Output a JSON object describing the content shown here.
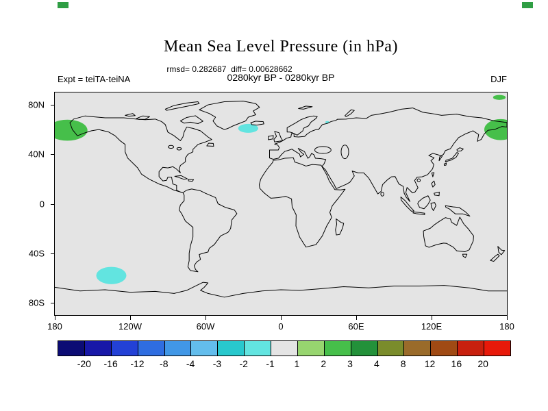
{
  "chart_data": {
    "type": "heatmap",
    "title": "Mean Sea Level Pressure (in hPa)",
    "stats_line": "rmsd= 0.282687  diff= 0.00628662",
    "period_label": "0280kyr BP - 0280kyr BP",
    "experiment_label": "Expt = teiTA-teiNA",
    "season_label": "DJF",
    "projection": "equirectangular",
    "lon_range": [
      -180,
      180
    ],
    "lat_range": [
      -90,
      90
    ],
    "map_background": "#e4e4e4",
    "corner_mark_color": "#2f9e44",
    "lat_ticks": [
      {
        "value": 80,
        "label": "80N"
      },
      {
        "value": 40,
        "label": "40N"
      },
      {
        "value": 0,
        "label": "0"
      },
      {
        "value": -40,
        "label": "40S"
      },
      {
        "value": -80,
        "label": "80S"
      }
    ],
    "lon_ticks": [
      {
        "value": -180,
        "label": "180"
      },
      {
        "value": -120,
        "label": "120W"
      },
      {
        "value": -60,
        "label": "60W"
      },
      {
        "value": 0,
        "label": "0"
      },
      {
        "value": 60,
        "label": "60E"
      },
      {
        "value": 120,
        "label": "120E"
      },
      {
        "value": 180,
        "label": "180"
      }
    ],
    "colorbar": {
      "tick_labels": [
        "-20",
        "-16",
        "-12",
        "-8",
        "-4",
        "-3",
        "-2",
        "-1",
        "1",
        "2",
        "3",
        "4",
        "8",
        "12",
        "16",
        "20"
      ],
      "colors": [
        "#0c0c74",
        "#1818a8",
        "#2341d6",
        "#2f6de0",
        "#4197e6",
        "#63bdec",
        "#28c8cd",
        "#62e4e0",
        "#e4e4e4",
        "#97d56f",
        "#46bf4a",
        "#23913a",
        "#7a8c2b",
        "#9a6b2a",
        "#a04a14",
        "#c8200e",
        "#e8190a"
      ]
    },
    "anomalies": [
      {
        "id": "bering-sea-positive",
        "value_bin": "2 to 3 hPa",
        "lon": -170,
        "lat": 59.5,
        "rx_deg": 16,
        "ry_deg": 8.5,
        "color": "#46bf4a"
      },
      {
        "id": "northwest-pacific-positive",
        "value_bin": "2 to 3 hPa",
        "lon": 175,
        "lat": 60,
        "rx_deg": 13,
        "ry_deg": 8.5,
        "color": "#46bf4a"
      },
      {
        "id": "arctic-dateline-positive",
        "value_bin": "2 to 3 hPa",
        "lon": 174,
        "lat": 86,
        "rx_deg": 5,
        "ry_deg": 2,
        "color": "#46bf4a"
      },
      {
        "id": "north-atlantic-negative",
        "value_bin": "-2 to -1 hPa",
        "lon": -26,
        "lat": 61,
        "rx_deg": 8,
        "ry_deg": 3.6,
        "color": "#62e4e0"
      },
      {
        "id": "barents-negative",
        "value_bin": "-2 to -1 hPa",
        "lon": 37,
        "lat": 66,
        "rx_deg": 1.6,
        "ry_deg": 0.9,
        "color": "#62e4e0"
      },
      {
        "id": "south-pacific-negative",
        "value_bin": "-2 to -1 hPa",
        "lon": -135,
        "lat": -58,
        "rx_deg": 12,
        "ry_deg": 7,
        "color": "#62e4e0"
      }
    ]
  }
}
